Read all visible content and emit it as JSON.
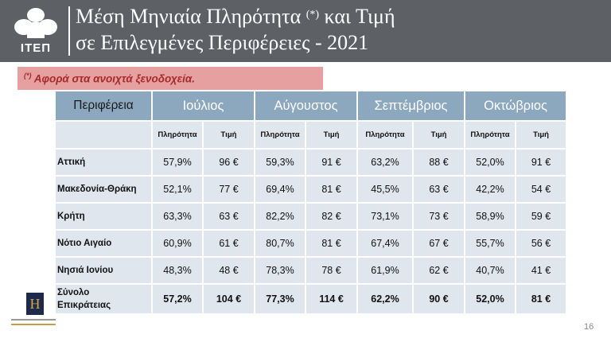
{
  "header": {
    "logo_text": "ΙΤΕΠ",
    "title_line1": "Μέση Μηνιαία Πληρότητα",
    "title_sup": "(*)",
    "title_line1_rest": "και Τιμή",
    "title_line2": "σε Επιλεγμένες Περιφέρειες - 2021"
  },
  "note": {
    "sup": "(*)",
    "text": "Αφορά στα ανοιχτά ξενοδοχεία."
  },
  "table": {
    "region_header": "Περιφέρεια",
    "months": [
      "Ιούλιος",
      "Αύγουστος",
      "Σεπτέμβριος",
      "Οκτώβριος"
    ],
    "sub_occ": "Πληρότητα",
    "sub_price": "Τιμή",
    "rows": [
      {
        "name": "Αττική",
        "values": [
          "57,9%",
          "96 €",
          "59,3%",
          "91 €",
          "63,2%",
          "88 €",
          "52,0%",
          "91 €"
        ]
      },
      {
        "name": "Μακεδονία-Θράκη",
        "values": [
          "52,1%",
          "77 €",
          "69,4%",
          "81 €",
          "45,5%",
          "63 €",
          "42,2%",
          "54 €"
        ]
      },
      {
        "name": "Κρήτη",
        "values": [
          "63,3%",
          "63 €",
          "82,2%",
          "82 €",
          "73,1%",
          "73 €",
          "58,9%",
          "59 €"
        ]
      },
      {
        "name": "Νότιο Αιγαίο",
        "values": [
          "60,9%",
          "61 €",
          "80,7%",
          "81 €",
          "67,4%",
          "67 €",
          "55,7%",
          "56 €"
        ]
      },
      {
        "name": "Νησιά Ιονίου",
        "values": [
          "48,3%",
          "48 €",
          "78,3%",
          "78 €",
          "61,9%",
          "62 €",
          "40,7%",
          "41 €"
        ]
      }
    ],
    "total": {
      "name_line1": "Σύνολο",
      "name_line2": "Επικράτειας",
      "values": [
        "57,2%",
        "104 €",
        "77,3%",
        "114 €",
        "62,2%",
        "90 €",
        "52,0%",
        "81 €"
      ]
    }
  },
  "hotel_logo_letter": "H",
  "page_number": "16",
  "colors": {
    "header_bg": "#5d6166",
    "table_header": "#8ca8bf",
    "table_cell": "#dfe6ee",
    "note_bg": "#e6a0a0",
    "note_text": "#a52a2a"
  }
}
